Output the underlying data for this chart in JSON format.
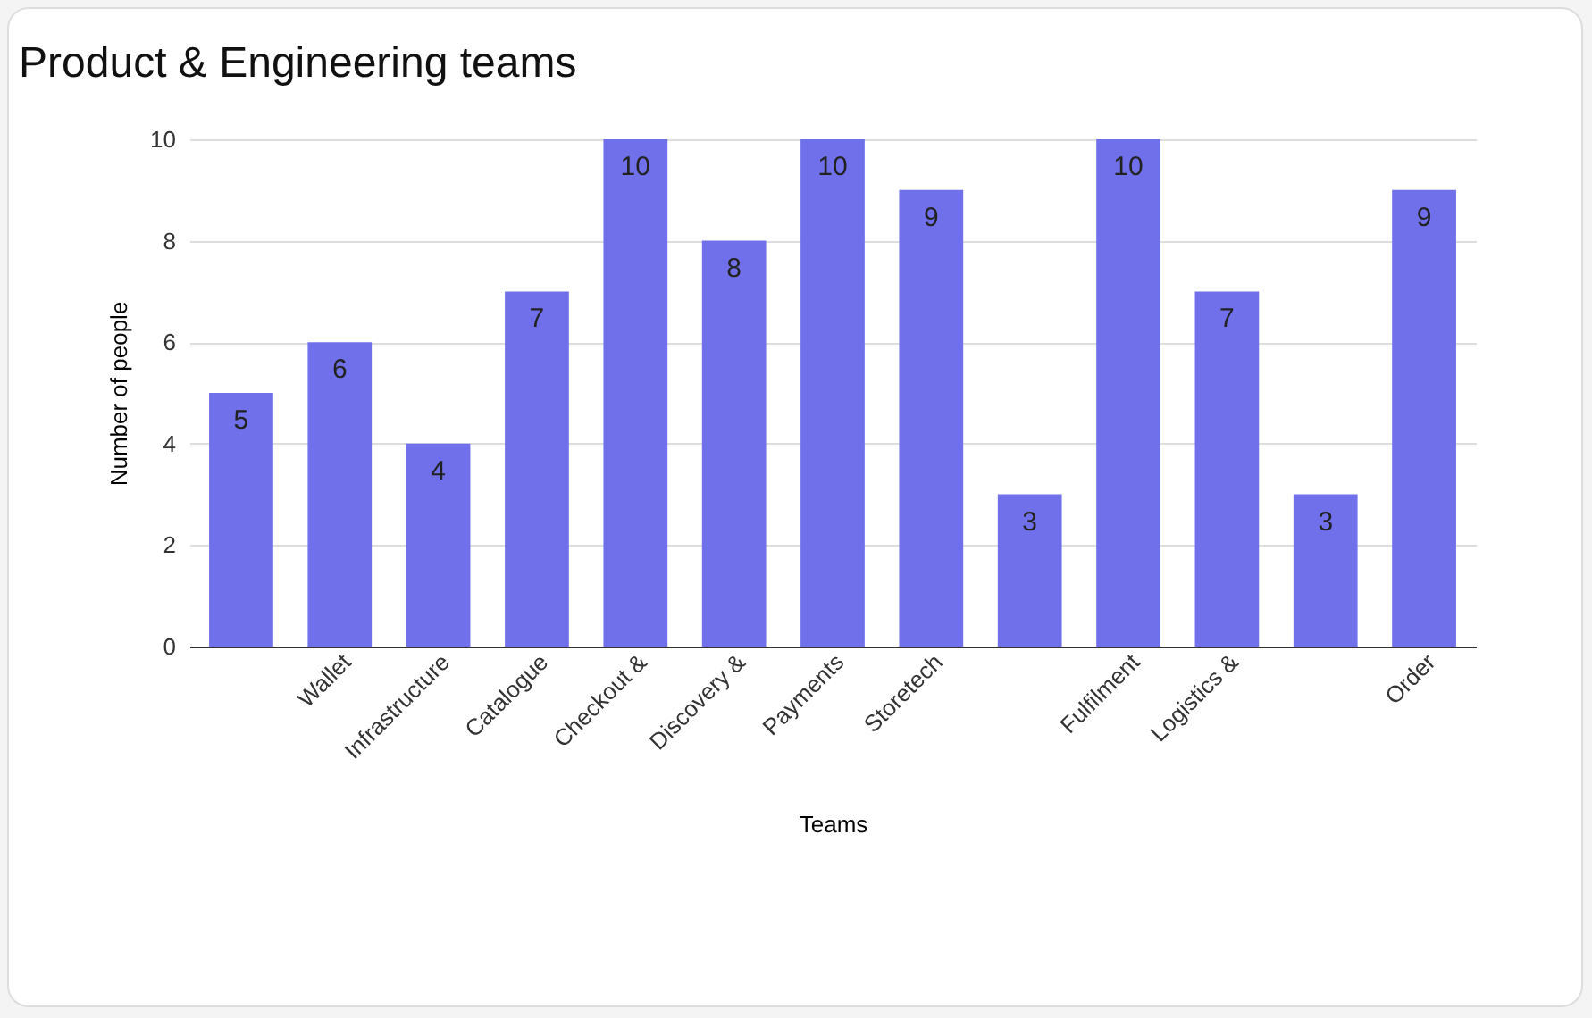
{
  "chart_data": {
    "type": "bar",
    "title": "Product & Engineering teams",
    "xlabel": "Teams",
    "ylabel": "Number of people",
    "categories": [
      null,
      "Wallet",
      "Infrastructure",
      "Catalogue",
      "Checkout &",
      "Discovery &",
      "Payments",
      "Storetech",
      null,
      "Fulfilment",
      "Logistics &",
      null,
      "Order"
    ],
    "values": [
      5,
      6,
      4,
      7,
      10,
      8,
      10,
      9,
      3,
      10,
      7,
      3,
      9
    ],
    "color": "#7070ea",
    "ylim": [
      0,
      10
    ],
    "yticks": [
      0,
      2,
      4,
      6,
      8,
      10
    ],
    "grid": "y",
    "data_labels": true
  }
}
